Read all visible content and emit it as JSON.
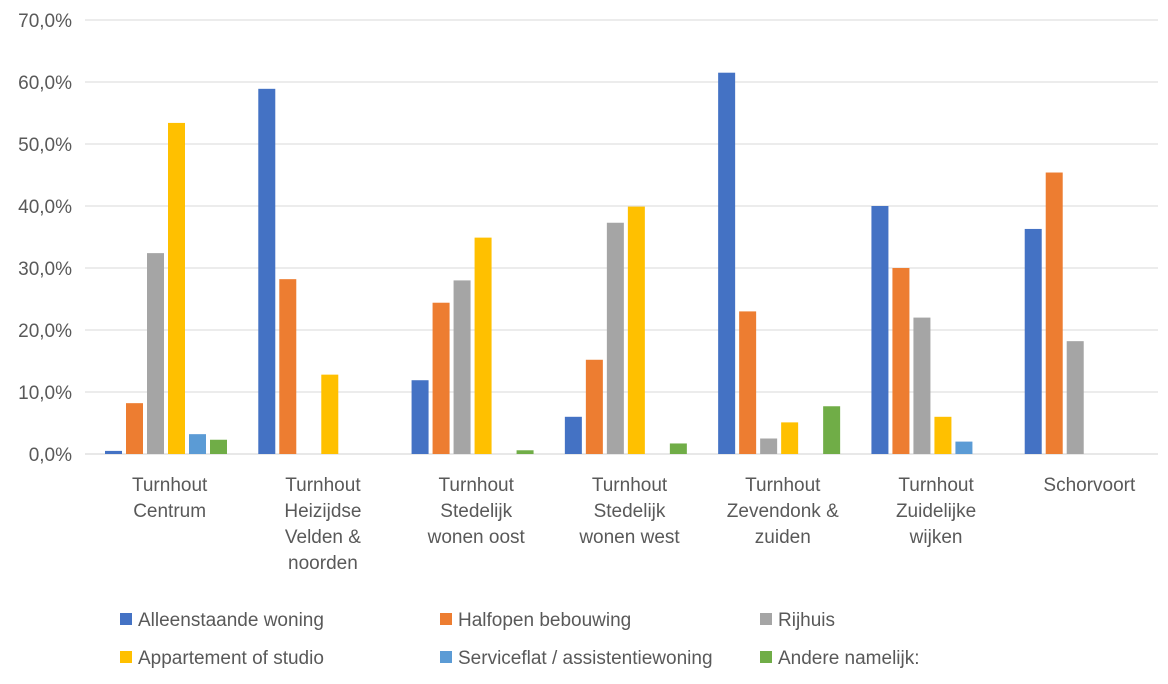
{
  "chart_data": {
    "type": "bar",
    "categories": [
      [
        "Turnhout",
        "Centrum"
      ],
      [
        "Turnhout",
        "Heizijdse",
        "Velden &",
        "noorden"
      ],
      [
        "Turnhout",
        "Stedelijk",
        "wonen oost"
      ],
      [
        "Turnhout",
        "Stedelijk",
        "wonen west"
      ],
      [
        "Turnhout",
        "Zevendonk &",
        "zuiden"
      ],
      [
        "Turnhout",
        "Zuidelijke",
        "wijken"
      ],
      [
        "Schorvoort"
      ]
    ],
    "series": [
      {
        "name": "Alleenstaande woning",
        "color": "#4472C4",
        "values": [
          0.5,
          58.9,
          11.9,
          6.0,
          61.5,
          40.0,
          36.3
        ]
      },
      {
        "name": "Halfopen bebouwing",
        "color": "#ED7D31",
        "values": [
          8.2,
          28.2,
          24.4,
          15.2,
          23.0,
          30.0,
          45.4
        ]
      },
      {
        "name": "Rijhuis",
        "color": "#A5A5A5",
        "values": [
          32.4,
          0,
          28.0,
          37.3,
          2.5,
          22.0,
          18.2
        ]
      },
      {
        "name": "Appartement of studio",
        "color": "#FFC000",
        "values": [
          53.4,
          12.8,
          34.9,
          39.9,
          5.1,
          6.0,
          0
        ]
      },
      {
        "name": "Serviceflat / assistentiewoning",
        "color": "#5B9BD5",
        "values": [
          3.2,
          0,
          0,
          0,
          0,
          2.0,
          0
        ]
      },
      {
        "name": "Andere namelijk:",
        "color": "#70AD47",
        "values": [
          2.3,
          0,
          0.6,
          1.7,
          7.7,
          0,
          0
        ]
      }
    ],
    "yticks": [
      "0,0%",
      "10,0%",
      "20,0%",
      "30,0%",
      "40,0%",
      "50,0%",
      "60,0%",
      "70,0%"
    ],
    "ylim": [
      0,
      70
    ],
    "title": "",
    "xlabel": "",
    "ylabel": "",
    "grid": true,
    "legend_position": "bottom"
  }
}
